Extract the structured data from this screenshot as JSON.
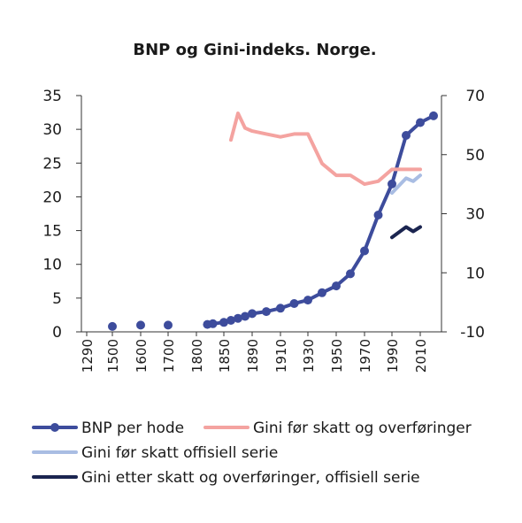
{
  "chart_data": {
    "type": "line",
    "title": "BNP og Gini-indeks. Norge.",
    "x_tick_labels": [
      "1290",
      "1500",
      "1600",
      "1700",
      "1800",
      "1850",
      "1890",
      "1910",
      "1930",
      "1950",
      "1970",
      "1990",
      "2010"
    ],
    "y_left": {
      "ticks": [
        0,
        5,
        10,
        15,
        20,
        25,
        30,
        35
      ],
      "ylim": [
        0,
        35
      ]
    },
    "y_right": {
      "ticks": [
        -10,
        10,
        30,
        50,
        70
      ],
      "ylim": [
        -10,
        70
      ]
    },
    "grid": false,
    "legend_position": "bottom",
    "series": [
      {
        "name": "BNP per hode",
        "axis": "left",
        "color": "#3d4c9c",
        "markers": true,
        "x": [
          "1500",
          "1600",
          "1700",
          "1820",
          "1830",
          "1850",
          "1860",
          "1870",
          "1880",
          "1890",
          "1900",
          "1910",
          "1920",
          "1930",
          "1940",
          "1950",
          "1960",
          "1970",
          "1980",
          "1990",
          "2000",
          "2010",
          "2020"
        ],
        "values": [
          0.8,
          1.0,
          1.0,
          1.1,
          1.2,
          1.4,
          1.7,
          2.0,
          2.3,
          2.7,
          3.0,
          3.5,
          4.2,
          4.7,
          5.8,
          6.8,
          8.6,
          12.0,
          17.3,
          21.9,
          29.1,
          31.0,
          32.0
        ],
        "connected_from_index": 3,
        "marked_points": [
          0,
          1,
          2,
          3,
          4,
          6,
          8,
          10,
          12,
          14,
          15,
          17,
          18,
          20,
          21,
          22,
          23
        ]
      },
      {
        "name": "Gini før skatt og overføringer",
        "axis": "right",
        "color": "#f4a3a0",
        "markers": false,
        "x": [
          "1860",
          "1870",
          "1880",
          "1890",
          "1900",
          "1910",
          "1920",
          "1930",
          "1940",
          "1950",
          "1960",
          "1970",
          "1980",
          "1990",
          "2000",
          "2010"
        ],
        "values": [
          55,
          64,
          59,
          58,
          57,
          56,
          57,
          57,
          47,
          43,
          43,
          40,
          41,
          45,
          45,
          45
        ]
      },
      {
        "name": "Gini før skatt offisiell serie",
        "axis": "right",
        "color": "#a9bde3",
        "markers": false,
        "x": [
          "1990",
          "2000",
          "2005",
          "2010"
        ],
        "values": [
          37,
          42,
          41,
          43
        ]
      },
      {
        "name": "Gini etter skatt og overføringer, offisiell serie",
        "axis": "right",
        "color": "#1b2550",
        "markers": false,
        "x": [
          "1990",
          "2000",
          "2005",
          "2010"
        ],
        "values": [
          22,
          25.5,
          24,
          25.5
        ]
      }
    ]
  }
}
